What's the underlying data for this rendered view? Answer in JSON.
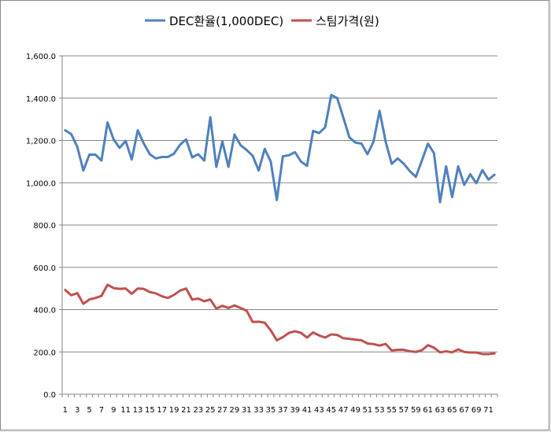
{
  "chart_data": {
    "type": "line",
    "title": "",
    "xlabel": "",
    "ylabel": "",
    "ylim": [
      0,
      1600
    ],
    "y_ticks": [
      "0.0",
      "200.0",
      "400.0",
      "600.0",
      "800.0",
      "1,000.0",
      "1,200.0",
      "1,400.0",
      "1,600.0"
    ],
    "grid": "horizontal",
    "legend_position": "top",
    "x": [
      1,
      2,
      3,
      4,
      5,
      6,
      7,
      8,
      9,
      10,
      11,
      12,
      13,
      14,
      15,
      16,
      17,
      18,
      19,
      20,
      21,
      22,
      23,
      24,
      25,
      26,
      27,
      28,
      29,
      30,
      31,
      32,
      33,
      34,
      35,
      36,
      37,
      38,
      39,
      40,
      41,
      42,
      43,
      44,
      45,
      46,
      47,
      48,
      49,
      50,
      51,
      52,
      53,
      54,
      55,
      56,
      57,
      58,
      59,
      60,
      61,
      62,
      63,
      64,
      65,
      66,
      67,
      68,
      69,
      70,
      71,
      72
    ],
    "x_tick_labels": [
      "1",
      "3",
      "5",
      "7",
      "9",
      "11",
      "13",
      "15",
      "17",
      "19",
      "21",
      "23",
      "25",
      "27",
      "29",
      "31",
      "33",
      "35",
      "37",
      "39",
      "41",
      "43",
      "45",
      "47",
      "49",
      "51",
      "53",
      "55",
      "57",
      "59",
      "61",
      "63",
      "65",
      "67",
      "69",
      "71"
    ],
    "series": [
      {
        "name": "DEC환율(1,000DEC)",
        "color": "#4f81bd",
        "values": [
          1248,
          1230,
          1170,
          1058,
          1133,
          1133,
          1105,
          1285,
          1205,
          1165,
          1198,
          1110,
          1248,
          1185,
          1135,
          1115,
          1122,
          1122,
          1138,
          1180,
          1205,
          1120,
          1135,
          1105,
          1310,
          1075,
          1195,
          1075,
          1228,
          1178,
          1155,
          1128,
          1058,
          1160,
          1100,
          918,
          1125,
          1130,
          1145,
          1100,
          1080,
          1245,
          1235,
          1262,
          1415,
          1400,
          1308,
          1215,
          1190,
          1185,
          1135,
          1195,
          1340,
          1195,
          1090,
          1115,
          1090,
          1055,
          1028,
          1105,
          1185,
          1140,
          908,
          1078,
          932,
          1078,
          990,
          1040,
          998,
          1060,
          1015,
          1038
        ]
      },
      {
        "name": "스팀가격(원)",
        "color": "#c0504d",
        "values": [
          493,
          468,
          478,
          428,
          448,
          455,
          465,
          518,
          502,
          498,
          500,
          475,
          500,
          498,
          483,
          477,
          463,
          455,
          470,
          490,
          500,
          448,
          452,
          440,
          448,
          405,
          418,
          408,
          420,
          408,
          395,
          342,
          343,
          338,
          302,
          255,
          270,
          290,
          298,
          290,
          268,
          292,
          278,
          268,
          283,
          280,
          265,
          262,
          258,
          255,
          240,
          237,
          230,
          238,
          207,
          210,
          210,
          203,
          200,
          208,
          232,
          220,
          198,
          203,
          198,
          212,
          200,
          197,
          197,
          190,
          190,
          193
        ]
      }
    ]
  }
}
